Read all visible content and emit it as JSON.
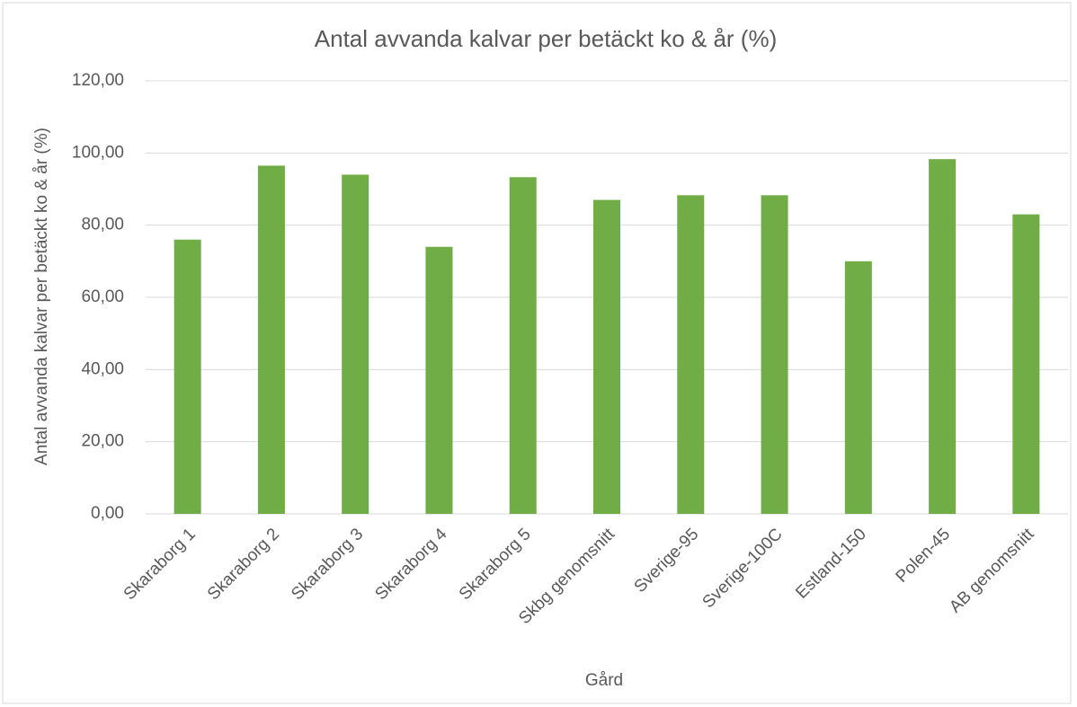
{
  "chart_data": {
    "type": "bar",
    "title": "Antal avvanda kalvar per betäckt ko & år (%)",
    "x_label": "Gård",
    "y_label": "Antal avvanda  kalvar per betäckt ko & år (%)",
    "categories": [
      "Skaraborg 1",
      "Skaraborg 2",
      "Skaraborg 3",
      "Skaraborg 4",
      "Skaraborg 5",
      "Skbg genomsnitt",
      "Sverige-95",
      "Sverige-100C",
      "Estland-150",
      "Polen-45",
      "AB genomsnitt"
    ],
    "values": [
      76,
      96.5,
      94,
      74,
      93.3,
      87,
      88.3,
      88.3,
      70,
      98.3,
      83
    ],
    "color": "#70ad47",
    "ylim": [
      0,
      120
    ],
    "yticks": [
      {
        "value": 0,
        "label": "0,00"
      },
      {
        "value": 20,
        "label": "20,00"
      },
      {
        "value": 40,
        "label": "40,00"
      },
      {
        "value": 60,
        "label": "60,00"
      },
      {
        "value": 80,
        "label": "80,00"
      },
      {
        "value": 100,
        "label": "100,00"
      },
      {
        "value": 120,
        "label": "120,00"
      }
    ],
    "grid": true
  }
}
